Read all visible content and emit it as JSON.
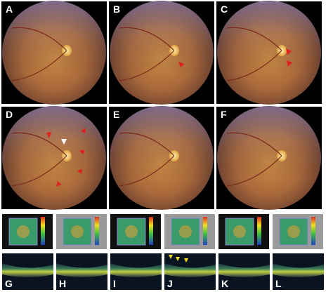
{
  "panel_labels": [
    "A",
    "B",
    "C",
    "D",
    "E",
    "F",
    "G",
    "H",
    "I",
    "J",
    "K",
    "L"
  ]
}
